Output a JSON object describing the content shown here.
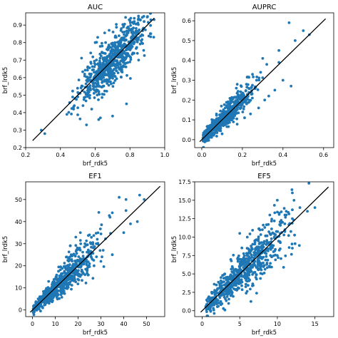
{
  "figure": {
    "point_color": "#1f77b4",
    "line_color": "#000000",
    "background": "#ffffff"
  },
  "chart_data": [
    {
      "type": "scatter",
      "title": "AUC",
      "xlabel": "brf_rdk5",
      "ylabel": "brf_lrdk5",
      "xlim": [
        0.2,
        1.0
      ],
      "ylim": [
        0.2,
        0.97
      ],
      "xticks": [
        "0.2",
        "0.4",
        "0.6",
        "0.8",
        "1.0"
      ],
      "yticks": [
        "0.2",
        "0.3",
        "0.4",
        "0.5",
        "0.6",
        "0.7",
        "0.8",
        "0.9"
      ],
      "identity_line": [
        0.24,
        0.94
      ],
      "grid": false,
      "n_points": 700,
      "seed": 11,
      "points": [
        [
          0.31,
          0.28
        ],
        [
          0.29,
          0.3
        ],
        [
          0.63,
          0.37
        ],
        [
          0.55,
          0.33
        ],
        [
          0.7,
          0.38
        ],
        [
          0.88,
          0.95
        ],
        [
          0.56,
          0.54
        ],
        [
          0.6,
          0.8
        ],
        [
          0.68,
          0.87
        ],
        [
          0.66,
          0.8
        ],
        [
          0.53,
          0.44
        ],
        [
          0.78,
          0.45
        ],
        [
          0.48,
          0.44
        ],
        [
          0.92,
          0.93
        ],
        [
          0.86,
          0.93
        ],
        [
          0.62,
          0.36
        ],
        [
          0.58,
          0.42
        ],
        [
          0.8,
          0.72
        ],
        [
          0.85,
          0.7
        ],
        [
          0.64,
          0.78
        ],
        [
          0.5,
          0.49
        ],
        [
          0.75,
          0.88
        ]
      ],
      "cluster": {
        "xmean": 0.7,
        "xsd": 0.1,
        "xmin": 0.43,
        "xmax": 0.94,
        "spread": 0.06,
        "hetero": 0.01
      }
    },
    {
      "type": "scatter",
      "title": "AUPRC",
      "xlabel": "brf_rdk5",
      "ylabel": "brf_lrdk5",
      "xlim": [
        -0.035,
        0.65
      ],
      "ylim": [
        -0.04,
        0.64
      ],
      "xticks": [
        "0.0",
        "0.2",
        "0.4",
        "0.6"
      ],
      "yticks": [
        "0.0",
        "0.1",
        "0.2",
        "0.3",
        "0.4",
        "0.5",
        "0.6"
      ],
      "identity_line": [
        -0.01,
        0.61
      ],
      "grid": false,
      "n_points": 700,
      "seed": 23,
      "points": [
        [
          0.43,
          0.59
        ],
        [
          0.5,
          0.55
        ],
        [
          0.53,
          0.53
        ],
        [
          0.46,
          0.5
        ],
        [
          0.38,
          0.45
        ],
        [
          0.38,
          0.39
        ],
        [
          0.3,
          0.41
        ],
        [
          0.32,
          0.38
        ],
        [
          0.29,
          0.34
        ],
        [
          0.4,
          0.3
        ],
        [
          0.36,
          0.25
        ],
        [
          0.44,
          0.27
        ],
        [
          0.25,
          0.33
        ],
        [
          0.27,
          0.3
        ],
        [
          0.22,
          0.28
        ],
        [
          0.33,
          0.22
        ],
        [
          0.31,
          0.2
        ],
        [
          0.28,
          0.16
        ],
        [
          0.24,
          0.13
        ],
        [
          0.21,
          0.19
        ],
        [
          0.19,
          0.22
        ],
        [
          0.17,
          0.26
        ]
      ],
      "cluster": {
        "xmean": 0.1,
        "xsd": 0.07,
        "xmin": 0.005,
        "xmax": 0.42,
        "spread": 0.012,
        "hetero": 0.12
      }
    },
    {
      "type": "scatter",
      "title": "EF1",
      "xlabel": "brf_rdk5",
      "ylabel": "brf_lrdk5",
      "xlim": [
        -3,
        58
      ],
      "ylim": [
        -3,
        58
      ],
      "xticks": [
        "0",
        "10",
        "20",
        "30",
        "40",
        "50"
      ],
      "yticks": [
        "0",
        "10",
        "20",
        "30",
        "40",
        "50"
      ],
      "identity_line": [
        -1,
        56
      ],
      "grid": false,
      "n_points": 700,
      "seed": 37,
      "points": [
        [
          41,
          50
        ],
        [
          38,
          51
        ],
        [
          47,
          52
        ],
        [
          49,
          50
        ],
        [
          41,
          45
        ],
        [
          35,
          44
        ],
        [
          34,
          42
        ],
        [
          40,
          35
        ],
        [
          25,
          34
        ],
        [
          21,
          35
        ],
        [
          19,
          33
        ],
        [
          28,
          30
        ],
        [
          23,
          30
        ],
        [
          31,
          27
        ],
        [
          35,
          25
        ],
        [
          30,
          22
        ],
        [
          27,
          20
        ],
        [
          24,
          18
        ],
        [
          17,
          25
        ],
        [
          15,
          24
        ],
        [
          46,
          40
        ],
        [
          43,
          39
        ]
      ],
      "cluster": {
        "xmean": 12,
        "xsd": 8,
        "xmin": 0.3,
        "xmax": 52,
        "spread": 0.8,
        "hetero": 0.2
      }
    },
    {
      "type": "scatter",
      "title": "EF5",
      "xlabel": "brf_rdk5",
      "ylabel": "brf_lrdk5",
      "xlim": [
        -1,
        17.5
      ],
      "ylim": [
        -0.8,
        17.5
      ],
      "xticks": [
        "0",
        "5",
        "10",
        "15"
      ],
      "yticks": [
        "0.0",
        "2.5",
        "5.0",
        "7.5",
        "10.0",
        "12.5",
        "15.0",
        "17.5"
      ],
      "identity_line": [
        -0.2,
        16.8
      ],
      "grid": false,
      "n_points": 700,
      "seed": 53,
      "points": [
        [
          12,
          16
        ],
        [
          10,
          15
        ],
        [
          13,
          14
        ],
        [
          11,
          13
        ],
        [
          12,
          12.5
        ],
        [
          14,
          13.5
        ],
        [
          15,
          14
        ],
        [
          9,
          13
        ],
        [
          8,
          11
        ],
        [
          6,
          10
        ],
        [
          7,
          9.5
        ],
        [
          5,
          10.5
        ],
        [
          12,
          8.5
        ],
        [
          10,
          7.5
        ],
        [
          9,
          6
        ],
        [
          8,
          5
        ],
        [
          6,
          4
        ],
        [
          5,
          7
        ],
        [
          3,
          5
        ],
        [
          2.5,
          4.5
        ],
        [
          4,
          6
        ],
        [
          11,
          11
        ]
      ],
      "cluster": {
        "xmean": 5.5,
        "xsd": 3,
        "xmin": 0.4,
        "xmax": 15.5,
        "spread": 0.6,
        "hetero": 0.14
      }
    }
  ]
}
